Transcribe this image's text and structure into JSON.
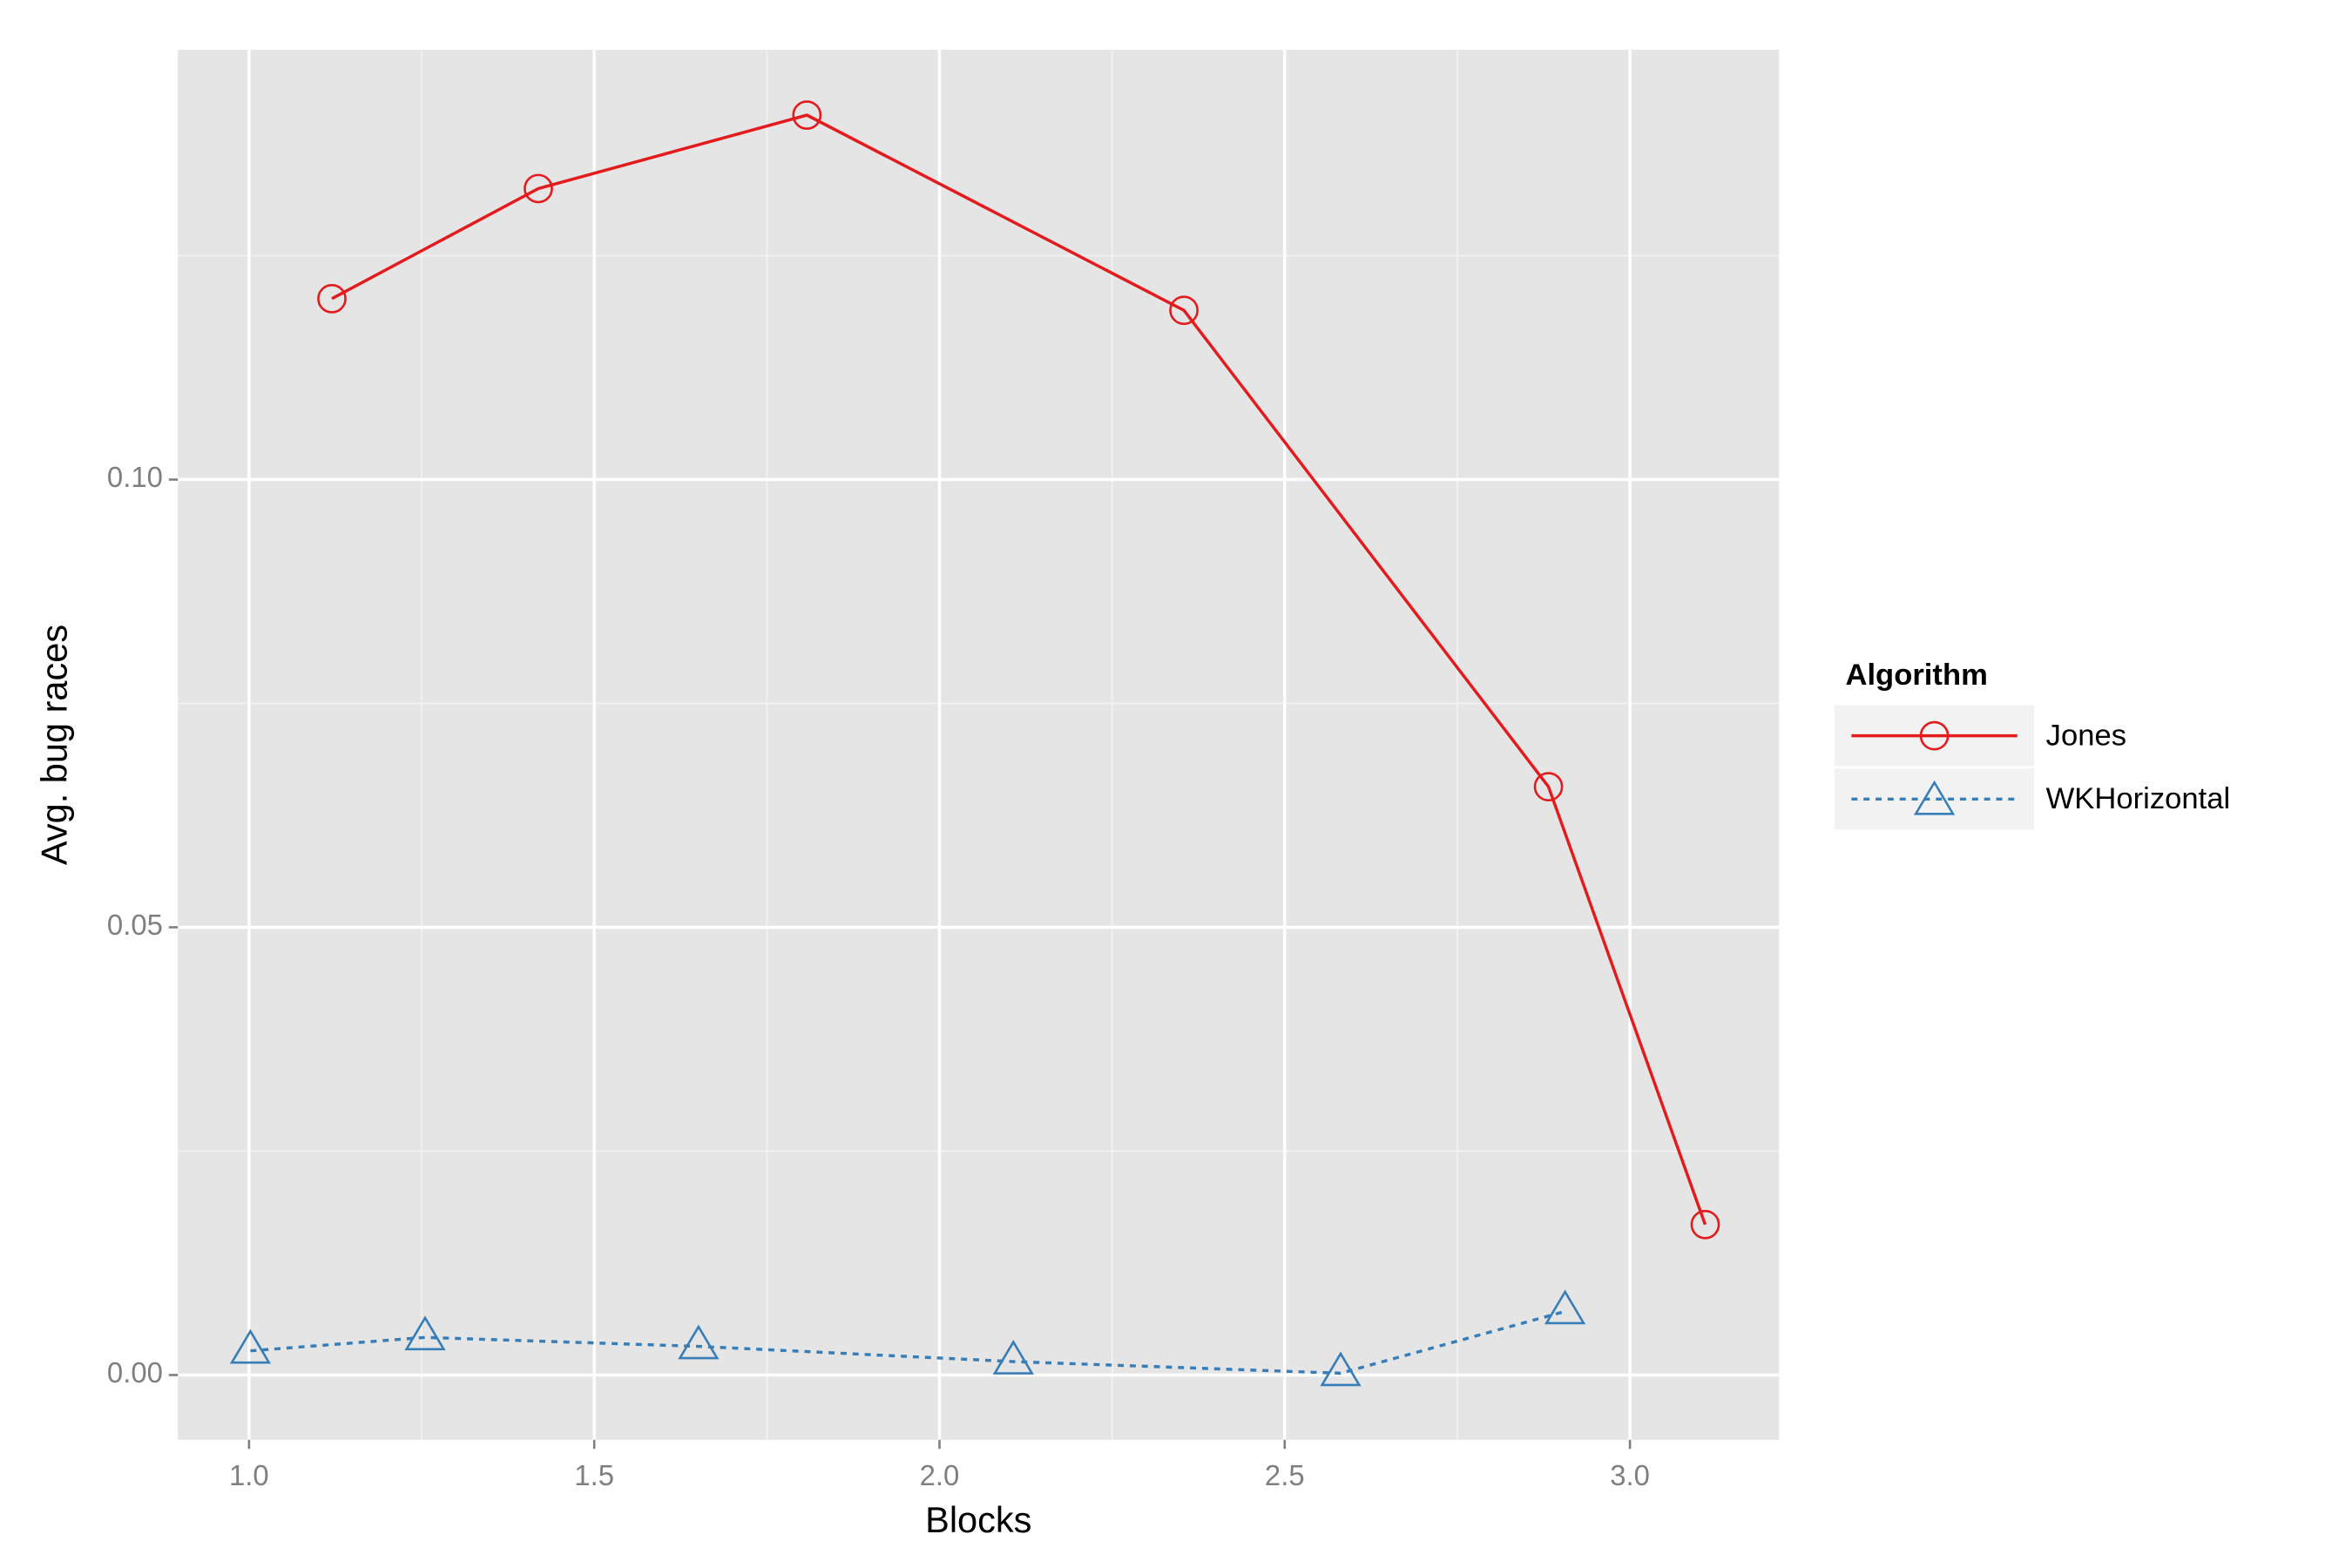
{
  "chart_data": {
    "type": "line",
    "x_label": "Blocks",
    "y_label": "Avg. bug races",
    "xlim": [
      0.897,
      3.216
    ],
    "xticks": [
      {
        "value": 1,
        "label": "1.0"
      },
      1.5,
      {
        "value": 2,
        "label": "2.0"
      },
      2.5,
      {
        "value": 3,
        "label": "3.0"
      }
    ],
    "ylim": [
      -0.00724,
      0.148
    ],
    "yticks": [
      {
        "value": 0,
        "label": "0.00"
      },
      0.05,
      {
        "value": 0.1,
        "label": "0.10"
      }
    ],
    "grid": true,
    "legend_title": "Algorithm",
    "series": [
      {
        "name": "Jones",
        "color": "#e41a1c",
        "marker": "circle",
        "dash": "solid",
        "x": [
          1.12,
          1.419,
          1.808,
          2.354,
          2.882,
          3.109
        ],
        "values": [
          0.1202,
          0.1325,
          0.1407,
          0.1189,
          0.0657,
          0.0168
        ]
      },
      {
        "name": "WKHorizontal",
        "color": "#377eb8",
        "marker": "triangle",
        "dash": "dotted",
        "x": [
          1.002,
          1.255,
          1.651,
          2.107,
          2.581,
          2.906
        ],
        "values": [
          0.0027,
          0.0042,
          0.0032,
          0.0015,
          0.0002,
          0.0071
        ]
      }
    ]
  }
}
